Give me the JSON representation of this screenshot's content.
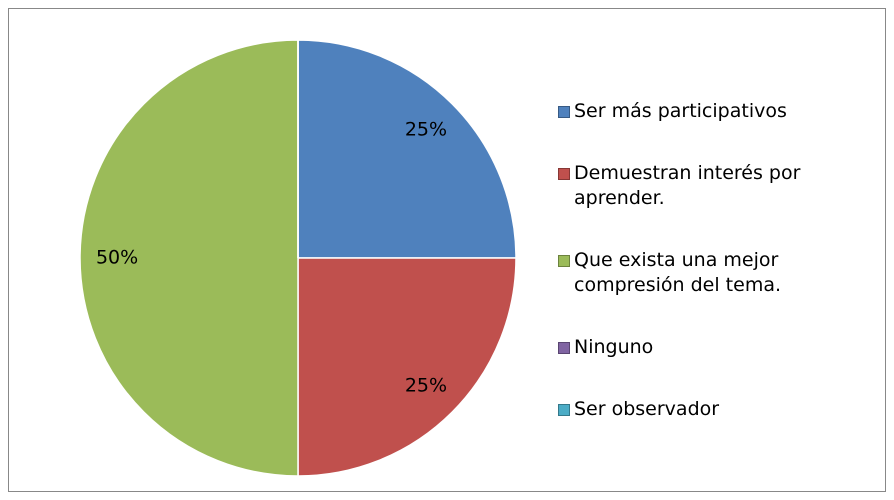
{
  "chart_data": {
    "type": "pie",
    "categories": [
      "Ser más participativos",
      "Demuestran interés por aprender.",
      "Que exista una mejor compresión del tema.",
      "Ninguno",
      "Ser observador"
    ],
    "values": [
      25,
      25,
      50,
      0,
      0
    ],
    "value_labels": [
      "25%",
      "25%",
      "50%",
      null,
      null
    ],
    "colors": [
      "#4f81bd",
      "#c0504d",
      "#9bbb59",
      "#8064a2",
      "#4bacc6"
    ],
    "legend": "right"
  }
}
